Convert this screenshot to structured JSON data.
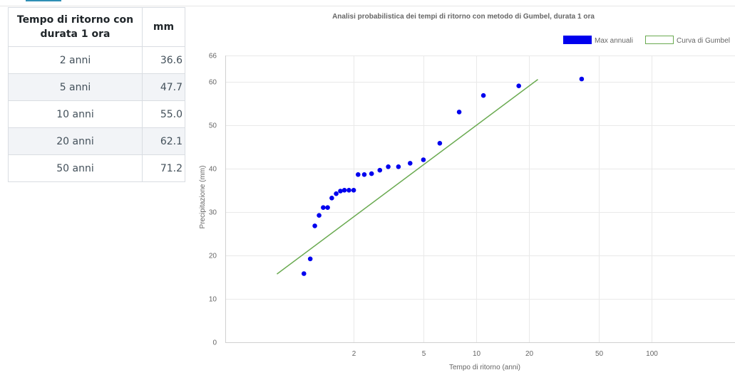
{
  "table": {
    "header_period": "Tempo di ritorno con durata 1 ora",
    "header_unit": "mm",
    "rows": [
      {
        "period": "2 anni",
        "value": "36.6"
      },
      {
        "period": "5 anni",
        "value": "47.7"
      },
      {
        "period": "10 anni",
        "value": "55.0"
      },
      {
        "period": "20 anni",
        "value": "62.1"
      },
      {
        "period": "50 anni",
        "value": "71.2"
      }
    ]
  },
  "chart_data": {
    "type": "scatter",
    "title": "Analisi probabilistica dei tempi di ritorno con metodo di Gumbel, durata 1 ora",
    "xlabel": "Tempo di ritorno (anni)",
    "ylabel": "Precipitazione (mm)",
    "x_scale": "log",
    "xlim": [
      0.37,
      300
    ],
    "ylim": [
      0,
      66
    ],
    "x_ticks": [
      2,
      5,
      10,
      20,
      50,
      100
    ],
    "y_ticks": [
      0,
      10,
      20,
      30,
      40,
      50,
      60,
      66
    ],
    "grid": true,
    "legend_position": "top-right",
    "colors": {
      "points": "#0000ee",
      "curve": "#6aaa50",
      "grid": "#e9e9e9"
    },
    "series": [
      {
        "name": "Max annuali",
        "kind": "scatter",
        "points": [
          {
            "x": 1.04,
            "y": 15.8
          },
          {
            "x": 1.13,
            "y": 19.2
          },
          {
            "x": 1.2,
            "y": 26.8
          },
          {
            "x": 1.27,
            "y": 29.2
          },
          {
            "x": 1.34,
            "y": 31.0
          },
          {
            "x": 1.42,
            "y": 31.0
          },
          {
            "x": 1.5,
            "y": 33.2
          },
          {
            "x": 1.59,
            "y": 34.2
          },
          {
            "x": 1.68,
            "y": 34.8
          },
          {
            "x": 1.77,
            "y": 35.0
          },
          {
            "x": 1.88,
            "y": 35.0
          },
          {
            "x": 2.0,
            "y": 35.0
          },
          {
            "x": 2.12,
            "y": 38.6
          },
          {
            "x": 2.3,
            "y": 38.6
          },
          {
            "x": 2.53,
            "y": 38.8
          },
          {
            "x": 2.82,
            "y": 39.6
          },
          {
            "x": 3.15,
            "y": 40.4
          },
          {
            "x": 3.6,
            "y": 40.4
          },
          {
            "x": 4.2,
            "y": 41.2
          },
          {
            "x": 5.0,
            "y": 42.0
          },
          {
            "x": 6.2,
            "y": 45.8
          },
          {
            "x": 8.0,
            "y": 53.0
          },
          {
            "x": 11.0,
            "y": 56.8
          },
          {
            "x": 17.5,
            "y": 59.0
          },
          {
            "x": 40.0,
            "y": 60.6
          }
        ]
      },
      {
        "name": "Curva di Gumbel",
        "kind": "line",
        "points": [
          {
            "x": 0.73,
            "y": 15.7
          },
          {
            "x": 22.5,
            "y": 60.5
          }
        ]
      }
    ]
  }
}
